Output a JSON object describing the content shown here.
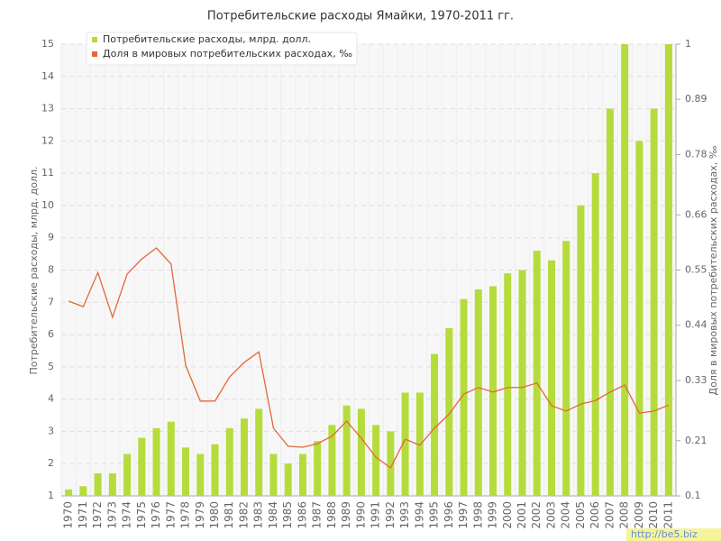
{
  "chart_data": {
    "type": "bar-line",
    "title": "Потребительские расходы Ямайки, 1970-2011 гг.",
    "y_label": "Потребительские расходы, млрд. долл.",
    "y2_label": "Доля в мировых потребительских расходах, ‰",
    "categories": [
      "1970",
      "1971",
      "1972",
      "1973",
      "1974",
      "1975",
      "1976",
      "1977",
      "1978",
      "1979",
      "1980",
      "1981",
      "1982",
      "1983",
      "1984",
      "1985",
      "1986",
      "1987",
      "1988",
      "1989",
      "1990",
      "1991",
      "1992",
      "1993",
      "1994",
      "1995",
      "1996",
      "1997",
      "1998",
      "1999",
      "2000",
      "2001",
      "2002",
      "2003",
      "2004",
      "2005",
      "2006",
      "2007",
      "2008",
      "2009",
      "2010",
      "2011"
    ],
    "series": [
      {
        "name": "Потребительские расходы, млрд. долл.",
        "color": "#b5dc3c",
        "type": "bar",
        "values": [
          1.2,
          1.3,
          1.7,
          1.7,
          2.3,
          2.8,
          3.1,
          3.3,
          2.5,
          2.3,
          2.6,
          3.1,
          3.4,
          3.7,
          2.3,
          2.0,
          2.3,
          2.7,
          3.2,
          3.8,
          3.7,
          3.2,
          3.0,
          4.2,
          4.2,
          5.4,
          6.2,
          7.1,
          7.4,
          7.5,
          7.9,
          8.0,
          8.6,
          8.3,
          8.9,
          10,
          11,
          13,
          15,
          12,
          13,
          15
        ]
      },
      {
        "name": "Доля в мировых потребительских расходах, ‰",
        "color": "#e2683a",
        "type": "line",
        "axis": "y2",
        "values": [
          0.488,
          0.477,
          0.545,
          0.456,
          0.542,
          0.572,
          0.594,
          0.562,
          0.36,
          0.289,
          0.289,
          0.337,
          0.366,
          0.387,
          0.235,
          0.199,
          0.197,
          0.204,
          0.219,
          0.249,
          0.215,
          0.177,
          0.156,
          0.213,
          0.201,
          0.235,
          0.263,
          0.303,
          0.316,
          0.307,
          0.316,
          0.316,
          0.325,
          0.28,
          0.269,
          0.283,
          0.29,
          0.307,
          0.321,
          0.265,
          0.269,
          0.281
        ]
      }
    ],
    "ylim": [
      1,
      15
    ],
    "yticks": [
      1,
      2,
      3,
      4,
      5,
      6,
      7,
      8,
      9,
      10,
      11,
      12,
      13,
      14,
      15
    ],
    "y2lim": [
      0.1,
      1
    ],
    "y2ticks": [
      0.1,
      0.21,
      0.33,
      0.44,
      0.55,
      0.66,
      0.78,
      0.89,
      1
    ],
    "grid": true,
    "legend": "top-left",
    "watermark": "http://be5.biz"
  }
}
